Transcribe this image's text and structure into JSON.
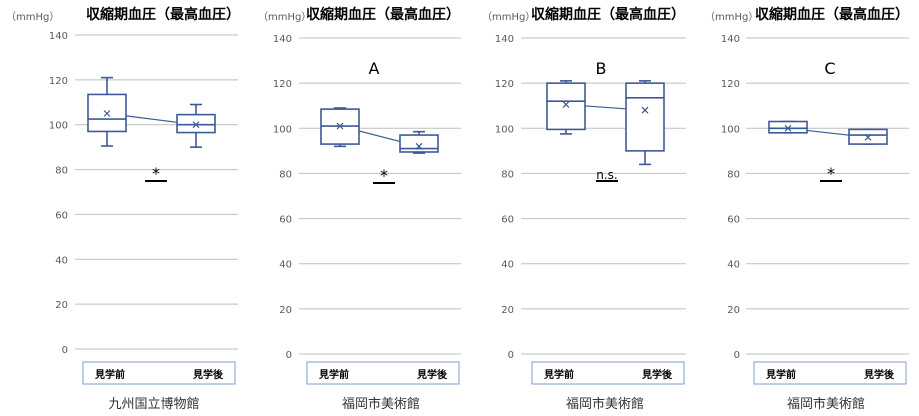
{
  "figure": {
    "title": "収縮期血圧（最高血圧）",
    "unit": "（mmHg）",
    "tick_labels": [
      "0",
      "20",
      "40",
      "60",
      "80",
      "100",
      "120",
      "140"
    ],
    "categories": [
      "見学前",
      "見学後"
    ]
  },
  "colors": {
    "box": "#3d5a96",
    "grid": "#bfbfbf",
    "text": "#595959",
    "legend_border": "#7f9cc5"
  },
  "chart_data": [
    {
      "type": "boxplot",
      "title": "収縮期血圧（最高血圧）",
      "ylabel": "（mmHg）",
      "panel_label": "",
      "xlabel": "九州国立博物館",
      "ylim": [
        0,
        140
      ],
      "yticks": [
        0,
        20,
        40,
        60,
        80,
        100,
        120,
        140
      ],
      "grid": true,
      "categories": [
        "見学前",
        "見学後"
      ],
      "boxes": [
        {
          "category": "見学前",
          "min": 90.5,
          "q1": 97,
          "median": 102.5,
          "q3": 113.5,
          "max": 121,
          "mean": 105
        },
        {
          "category": "見学後",
          "min": 90,
          "q1": 96.5,
          "median": 100,
          "q3": 104.5,
          "max": 109,
          "mean": 100
        }
      ],
      "significance": "*"
    },
    {
      "type": "boxplot",
      "title": "収縮期血圧（最高血圧）",
      "ylabel": "（mmHg）",
      "panel_label": "A",
      "xlabel": "福岡市美術館",
      "ylim": [
        0,
        140
      ],
      "yticks": [
        0,
        20,
        40,
        60,
        80,
        100,
        120,
        140
      ],
      "grid": true,
      "categories": [
        "見学前",
        "見学後"
      ],
      "boxes": [
        {
          "category": "見学前",
          "min": 92,
          "q1": 93,
          "median": 101,
          "q3": 108.5,
          "max": 109,
          "mean": 101
        },
        {
          "category": "見学後",
          "min": 89,
          "q1": 89.5,
          "median": 91,
          "q3": 97,
          "max": 98.5,
          "mean": 92
        }
      ],
      "significance": "*"
    },
    {
      "type": "boxplot",
      "title": "収縮期血圧（最高血圧）",
      "ylabel": "（mmHg）",
      "panel_label": "B",
      "xlabel": "福岡市美術館",
      "ylim": [
        0,
        140
      ],
      "yticks": [
        0,
        20,
        40,
        60,
        80,
        100,
        120,
        140
      ],
      "grid": true,
      "categories": [
        "見学前",
        "見学後"
      ],
      "boxes": [
        {
          "category": "見学前",
          "min": 97.5,
          "q1": 99.5,
          "median": 112,
          "q3": 120,
          "max": 121,
          "mean": 110.5
        },
        {
          "category": "見学後",
          "min": 84,
          "q1": 90,
          "median": 113.5,
          "q3": 120,
          "max": 121,
          "mean": 108
        }
      ],
      "significance": "n.s."
    },
    {
      "type": "boxplot",
      "title": "収縮期血圧（最高血圧）",
      "ylabel": "（mmHg）",
      "panel_label": "C",
      "xlabel": "福岡市美術館",
      "ylim": [
        0,
        140
      ],
      "yticks": [
        0,
        20,
        40,
        60,
        80,
        100,
        120,
        140
      ],
      "grid": true,
      "categories": [
        "見学前",
        "見学後"
      ],
      "boxes": [
        {
          "category": "見学前",
          "min": 98,
          "q1": 98,
          "median": 100,
          "q3": 103,
          "max": 103,
          "mean": 100
        },
        {
          "category": "見学後",
          "min": 93,
          "q1": 93,
          "median": 97,
          "q3": 99.5,
          "max": 99.5,
          "mean": 96
        }
      ],
      "significance": "*"
    }
  ]
}
